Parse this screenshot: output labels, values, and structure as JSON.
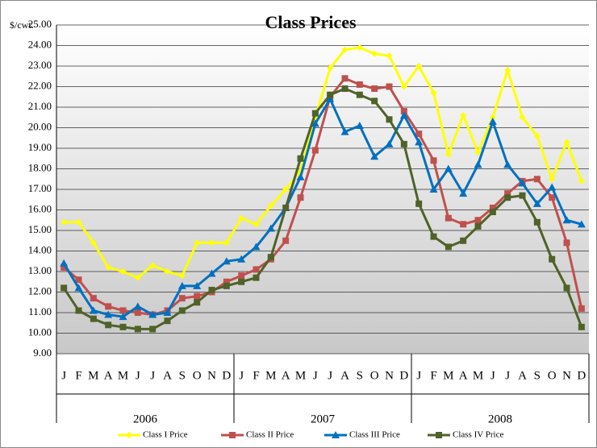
{
  "chart_data": {
    "type": "line",
    "title": "Class Prices",
    "y_unit": "$/cwt.",
    "categories": [
      "J",
      "F",
      "M",
      "A",
      "M",
      "J",
      "J",
      "A",
      "S",
      "O",
      "N",
      "D",
      "J",
      "F",
      "M",
      "A",
      "M",
      "J",
      "J",
      "A",
      "S",
      "O",
      "N",
      "D",
      "J",
      "F",
      "M",
      "A",
      "M",
      "J",
      "J",
      "A",
      "S",
      "O",
      "N",
      "D"
    ],
    "groups": [
      "2006",
      "2007",
      "2008"
    ],
    "series": [
      {
        "name": "Class I Price",
        "color": "#ffff00",
        "marker": "diamond",
        "values": [
          15.4,
          15.4,
          14.4,
          13.2,
          13.0,
          12.7,
          13.3,
          13.0,
          12.8,
          14.4,
          14.4,
          14.4,
          15.6,
          15.3,
          16.2,
          17.0,
          17.9,
          20.5,
          22.9,
          23.8,
          23.9,
          23.6,
          23.5,
          22.0,
          23.0,
          21.7,
          18.7,
          20.6,
          18.8,
          20.5,
          22.8,
          20.5,
          19.6,
          17.5,
          19.3,
          17.4
        ]
      },
      {
        "name": "Class II Price",
        "color": "#c0504d",
        "marker": "square",
        "values": [
          13.2,
          12.6,
          11.7,
          11.3,
          11.1,
          11.0,
          10.9,
          11.1,
          11.7,
          11.8,
          12.0,
          12.5,
          12.8,
          13.1,
          13.6,
          14.5,
          16.6,
          18.9,
          21.5,
          22.4,
          22.1,
          21.9,
          22.0,
          20.8,
          19.7,
          18.4,
          15.6,
          15.3,
          15.5,
          16.1,
          16.8,
          17.4,
          17.5,
          16.6,
          14.4,
          11.2
        ]
      },
      {
        "name": "Class III Price",
        "color": "#0070c0",
        "marker": "triangle",
        "values": [
          13.4,
          12.2,
          11.1,
          10.9,
          10.8,
          11.3,
          10.9,
          11.0,
          12.3,
          12.3,
          12.9,
          13.5,
          13.6,
          14.2,
          15.1,
          16.1,
          17.6,
          20.2,
          21.4,
          19.8,
          20.1,
          18.6,
          19.2,
          20.6,
          19.3,
          17.0,
          18.0,
          16.8,
          18.2,
          20.3,
          18.2,
          17.3,
          16.3,
          17.1,
          15.5,
          15.3
        ]
      },
      {
        "name": "Class IV Price",
        "color": "#4f6228",
        "marker": "square",
        "values": [
          12.2,
          11.1,
          10.7,
          10.4,
          10.3,
          10.2,
          10.2,
          10.6,
          11.1,
          11.5,
          12.1,
          12.3,
          12.5,
          12.7,
          13.7,
          16.1,
          18.5,
          20.7,
          21.6,
          21.9,
          21.6,
          21.3,
          20.4,
          19.2,
          16.3,
          14.7,
          14.2,
          14.5,
          15.2,
          15.9,
          16.6,
          16.7,
          15.4,
          13.6,
          12.2,
          10.3
        ]
      }
    ],
    "ylim": [
      9,
      25
    ],
    "yticks": [
      {
        "value": 9,
        "label": "9.00"
      },
      {
        "value": 10,
        "label": "10.00"
      },
      {
        "value": 11,
        "label": "11.00"
      },
      {
        "value": 12,
        "label": "12.00"
      },
      {
        "value": 13,
        "label": "13.00"
      },
      {
        "value": 14,
        "label": "14.00"
      },
      {
        "value": 15,
        "label": "15.00"
      },
      {
        "value": 16,
        "label": "16.00"
      },
      {
        "value": 17,
        "label": "17.00"
      },
      {
        "value": 18,
        "label": "18.00"
      },
      {
        "value": 19,
        "label": "19.00"
      },
      {
        "value": 20,
        "label": "20.00"
      },
      {
        "value": 21,
        "label": "21.00"
      },
      {
        "value": 22,
        "label": "22.00"
      },
      {
        "value": 23,
        "label": "23.00"
      },
      {
        "value": 24,
        "label": "24.00"
      },
      {
        "value": 25,
        "label": "25.00"
      }
    ],
    "grid": true,
    "legend": "bottom"
  }
}
